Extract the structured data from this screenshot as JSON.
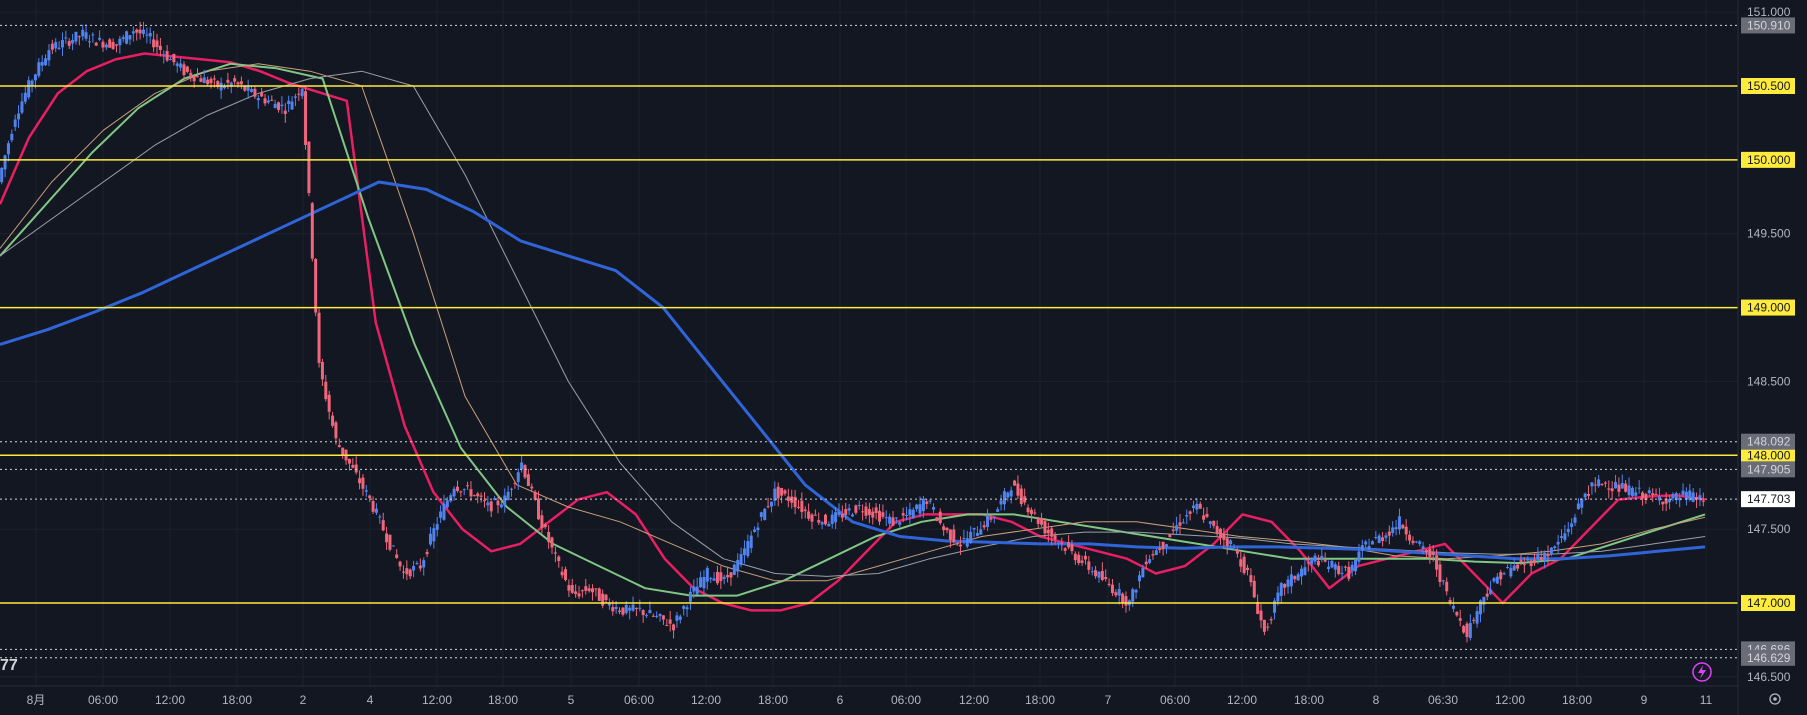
{
  "chart_data": {
    "type": "candlestick",
    "title": "",
    "ylim": [
      146.5,
      151.0
    ],
    "y_ticks": [
      {
        "value": 151.0,
        "label": "151.000"
      },
      {
        "value": 149.5,
        "label": "149.500"
      },
      {
        "value": 148.5,
        "label": "148.500"
      },
      {
        "value": 147.5,
        "label": "147.500"
      },
      {
        "value": 146.5,
        "label": "146.500"
      }
    ],
    "x_ticks": [
      "8月",
      "06:00",
      "12:00",
      "18:00",
      "2",
      "4",
      "12:00",
      "18:00",
      "5",
      "06:00",
      "12:00",
      "18:00",
      "6",
      "06:00",
      "12:00",
      "18:00",
      "7",
      "06:00",
      "12:00",
      "18:00",
      "8",
      "06:30",
      "12:00",
      "18:00",
      "9",
      "11"
    ],
    "horizontal_levels": [
      {
        "value": 150.5,
        "label": "150.500"
      },
      {
        "value": 150.0,
        "label": "150.000"
      },
      {
        "value": 149.0,
        "label": "149.000"
      },
      {
        "value": 148.0,
        "label": "148.000"
      },
      {
        "value": 147.0,
        "label": "147.000"
      }
    ],
    "dotted_levels": [
      {
        "value": 150.91,
        "label": "150.910"
      },
      {
        "value": 148.092,
        "label": "148.092"
      },
      {
        "value": 147.905,
        "label": "147.905"
      },
      {
        "value": 147.703,
        "label": "147.703"
      },
      {
        "value": 146.686,
        "label": "146.686"
      },
      {
        "value": 146.629,
        "label": "146.629"
      }
    ],
    "current_price": {
      "value": 147.703,
      "label": "147.703"
    },
    "price_path": [
      149.85,
      150.3,
      150.55,
      150.75,
      150.8,
      150.85,
      150.8,
      150.78,
      150.88,
      150.82,
      150.7,
      150.6,
      150.55,
      150.5,
      150.52,
      150.45,
      150.4,
      150.35,
      150.5,
      148.6,
      148.1,
      147.9,
      147.7,
      147.45,
      147.2,
      147.25,
      147.55,
      147.8,
      147.75,
      147.65,
      147.7,
      147.95,
      147.6,
      147.3,
      147.05,
      147.1,
      147.0,
      146.95,
      146.95,
      146.9,
      146.85,
      147.05,
      147.2,
      147.15,
      147.3,
      147.55,
      147.75,
      147.7,
      147.6,
      147.55,
      147.6,
      147.65,
      147.6,
      147.55,
      147.6,
      147.7,
      147.5,
      147.4,
      147.5,
      147.6,
      147.8,
      147.65,
      147.5,
      147.4,
      147.3,
      147.2,
      147.1,
      147.0,
      147.3,
      147.4,
      147.55,
      147.65,
      147.5,
      147.4,
      147.2,
      146.8,
      147.1,
      147.2,
      147.3,
      147.25,
      147.2,
      147.4,
      147.45,
      147.55,
      147.4,
      147.3,
      147.0,
      146.8,
      147.05,
      147.2,
      147.25,
      147.3,
      147.35,
      147.5,
      147.75,
      147.82,
      147.78,
      147.75,
      147.72,
      147.7,
      147.73,
      147.7
    ],
    "series": [
      {
        "color": "#e91e63",
        "values": [
          149.7,
          150.15,
          150.45,
          150.6,
          150.68,
          150.72,
          150.7,
          150.68,
          150.66,
          150.6,
          150.52,
          150.46,
          150.4,
          148.9,
          148.2,
          147.75,
          147.5,
          147.35,
          147.4,
          147.55,
          147.7,
          147.75,
          147.6,
          147.3,
          147.1,
          147.0,
          146.95,
          146.95,
          147.0,
          147.15,
          147.35,
          147.55,
          147.6,
          147.6,
          147.6,
          147.55,
          147.45,
          147.4,
          147.35,
          147.3,
          147.2,
          147.25,
          147.4,
          147.6,
          147.55,
          147.35,
          147.1,
          147.25,
          147.3,
          147.35,
          147.4,
          147.2,
          147.0,
          147.2,
          147.3,
          147.5,
          147.7,
          147.72,
          147.73,
          147.7
        ]
      },
      {
        "color": "#81c784",
        "values": [
          149.35,
          149.7,
          150.05,
          150.35,
          150.55,
          150.65,
          150.62,
          150.55,
          149.6,
          148.75,
          148.05,
          147.65,
          147.4,
          147.25,
          147.1,
          147.05,
          147.05,
          147.15,
          147.3,
          147.45,
          147.55,
          147.6,
          147.6,
          147.55,
          147.5,
          147.45,
          147.4,
          147.35,
          147.3,
          147.3,
          147.3,
          147.3,
          147.28,
          147.27,
          147.3,
          147.4,
          147.5,
          147.6
        ]
      },
      {
        "color": "#c8a07a",
        "values": [
          149.4,
          149.85,
          150.2,
          150.45,
          150.6,
          150.65,
          150.6,
          150.5,
          149.5,
          148.4,
          147.8,
          147.65,
          147.55,
          147.4,
          147.25,
          147.15,
          147.15,
          147.25,
          147.35,
          147.45,
          147.5,
          147.55,
          147.55,
          147.5,
          147.45,
          147.42,
          147.38,
          147.32,
          147.3,
          147.32,
          147.35,
          147.4,
          147.5,
          147.58
        ]
      },
      {
        "color": "#9aa0a8",
        "values": [
          149.35,
          149.6,
          149.85,
          150.1,
          150.3,
          150.45,
          150.55,
          150.6,
          150.5,
          149.9,
          149.2,
          148.5,
          147.95,
          147.55,
          147.3,
          147.2,
          147.18,
          147.2,
          147.3,
          147.38,
          147.45,
          147.48,
          147.48,
          147.46,
          147.44,
          147.4,
          147.38,
          147.36,
          147.34,
          147.33,
          147.33,
          147.35,
          147.4,
          147.45
        ]
      },
      {
        "color": "#2f65d8",
        "values": [
          148.75,
          148.85,
          148.97,
          149.1,
          149.25,
          149.4,
          149.55,
          149.7,
          149.85,
          149.8,
          149.65,
          149.45,
          149.35,
          149.25,
          149.0,
          148.6,
          148.2,
          147.8,
          147.55,
          147.45,
          147.42,
          147.41,
          147.4,
          147.4,
          147.38,
          147.37,
          147.38,
          147.38,
          147.37,
          147.36,
          147.34,
          147.32,
          147.3,
          147.3,
          147.32,
          147.35,
          147.38
        ]
      }
    ]
  }
}
